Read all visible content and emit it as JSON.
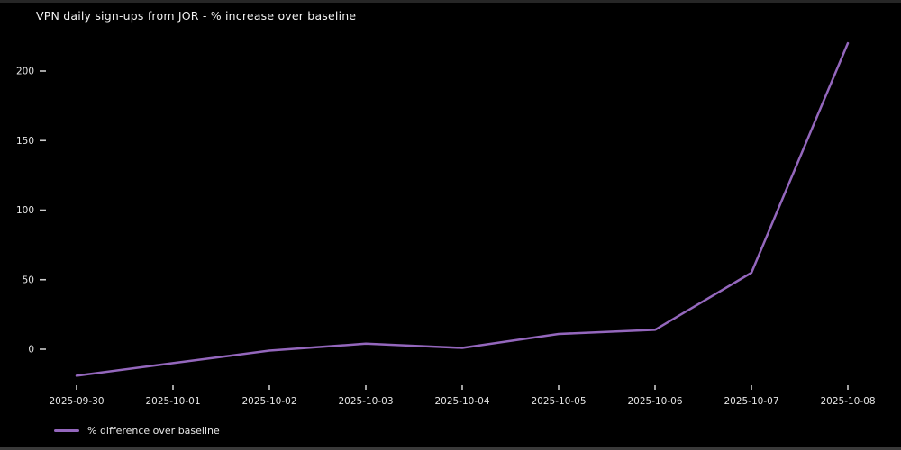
{
  "window": {
    "background": "#000000",
    "top_edge_color": "#262626",
    "bottom_edge_color": "#3a3a3a"
  },
  "chart_data": {
    "type": "line",
    "title": "VPN daily sign-ups from JOR - % increase over baseline",
    "categories": [
      "2025-09-30",
      "2025-10-01",
      "2025-10-02",
      "2025-10-03",
      "2025-10-04",
      "2025-10-05",
      "2025-10-06",
      "2025-10-07",
      "2025-10-08"
    ],
    "series": [
      {
        "name": "% difference over baseline",
        "values": [
          -19,
          -10,
          -1,
          4,
          1,
          11,
          14,
          55,
          220
        ],
        "color": "#9467bd"
      }
    ],
    "xlabel": "",
    "ylabel": "",
    "y_ticks": [
      0,
      50,
      100,
      150,
      200
    ],
    "ylim": [
      -30,
      230
    ],
    "grid": false,
    "legend_position": "lower-left",
    "background": "#000000"
  },
  "legend": {
    "label": "% difference over baseline"
  },
  "colors": {
    "title_text": "#f2f2f2",
    "tick_label_text": "#e6e6e6",
    "tick_mark": "#cccccc",
    "line": "#9467bd"
  }
}
